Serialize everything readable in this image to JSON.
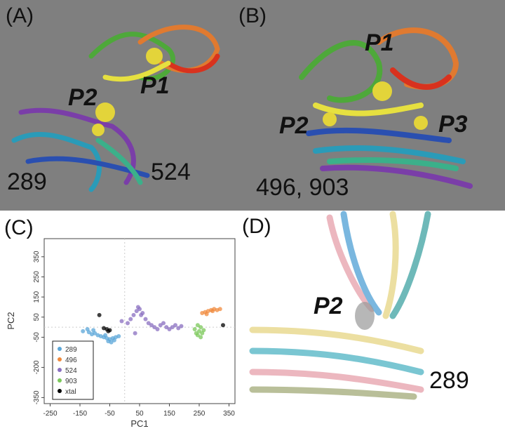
{
  "panels": {
    "a": {
      "label": "(A)",
      "annotations": [
        "P2",
        "P1",
        "289",
        "524"
      ]
    },
    "b": {
      "label": "(B)",
      "annotations": [
        "P1",
        "P2",
        "P3",
        "496, 903"
      ]
    },
    "c": {
      "label": "(C)"
    },
    "d": {
      "label": "(D)",
      "annotations": [
        "P2",
        "289"
      ]
    }
  },
  "chart_data": {
    "type": "scatter",
    "xlabel": "PC1",
    "ylabel": "PC2",
    "xlim": [
      -270,
      370
    ],
    "ylim": [
      -380,
      440
    ],
    "xticks": [
      -250,
      -150,
      -50,
      50,
      150,
      250,
      350
    ],
    "yticks": [
      350,
      250,
      150,
      50,
      -50,
      -200,
      -350
    ],
    "zero_lines": true,
    "legend": "bottom-left",
    "series": [
      {
        "name": "289",
        "color": "#5aa6d8",
        "x": [
          -140,
          -125,
          -110,
          -100,
          -90,
          -80,
          -70,
          -60,
          -50,
          -40,
          -30,
          -20,
          -55,
          -45,
          -35,
          -65,
          -120,
          -105
        ],
        "values": [
          -20,
          -10,
          -35,
          -30,
          -40,
          -45,
          -50,
          -55,
          -60,
          -55,
          -50,
          -45,
          -70,
          -75,
          -65,
          -40,
          -25,
          -15
        ]
      },
      {
        "name": "496",
        "color": "#f08a3c",
        "x": [
          260,
          270,
          280,
          290,
          300,
          310,
          320,
          275,
          295
        ],
        "values": [
          70,
          75,
          80,
          85,
          90,
          85,
          90,
          65,
          80
        ]
      },
      {
        "name": "524",
        "color": "#8a6fc0",
        "x": [
          -10,
          10,
          20,
          30,
          40,
          50,
          60,
          70,
          80,
          90,
          100,
          110,
          120,
          130,
          140,
          150,
          160,
          170,
          180,
          190,
          45,
          55,
          35
        ],
        "values": [
          30,
          20,
          40,
          60,
          80,
          90,
          70,
          40,
          20,
          10,
          0,
          -10,
          10,
          20,
          0,
          -10,
          0,
          10,
          -5,
          5,
          100,
          60,
          -30
        ]
      },
      {
        "name": "903",
        "color": "#7bc85a",
        "x": [
          235,
          240,
          245,
          250,
          255,
          260,
          265,
          245,
          255
        ],
        "values": [
          -10,
          -30,
          -40,
          -20,
          0,
          -30,
          -15,
          10,
          -50
        ]
      },
      {
        "name": "xtal",
        "color": "#000000",
        "x": [
          -85,
          -70,
          -60,
          -55,
          -50,
          330
        ],
        "values": [
          60,
          -5,
          -10,
          -20,
          -15,
          10
        ]
      }
    ]
  }
}
